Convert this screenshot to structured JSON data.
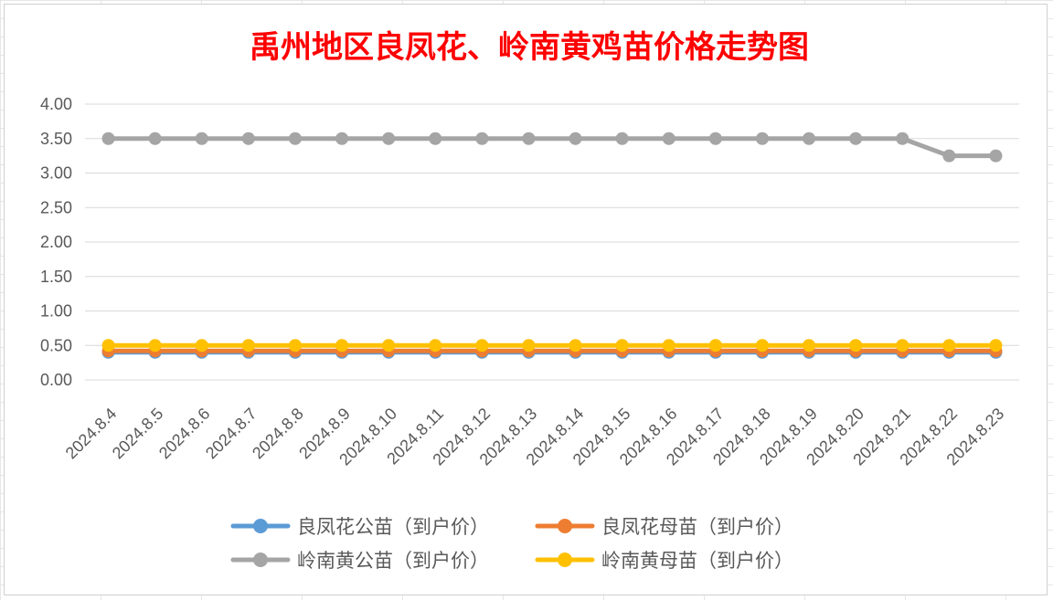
{
  "chart_data": {
    "type": "line",
    "title": "禹州地区良凤花、岭南黄鸡苗价格走势图",
    "xlabel": "",
    "ylabel": "",
    "ylim": [
      0,
      4
    ],
    "yticks": [
      "0.00",
      "0.50",
      "1.00",
      "1.50",
      "2.00",
      "2.50",
      "3.00",
      "3.50",
      "4.00"
    ],
    "grid": true,
    "legend_position": "bottom",
    "categories": [
      "2024.8.4",
      "2024.8.5",
      "2024.8.6",
      "2024.8.7",
      "2024.8.8",
      "2024.8.9",
      "2024.8.10",
      "2024.8.11",
      "2024.8.12",
      "2024.8.13",
      "2024.8.14",
      "2024.8.15",
      "2024.8.16",
      "2024.8.17",
      "2024.8.18",
      "2024.8.19",
      "2024.8.20",
      "2024.8.21",
      "2024.8.22",
      "2024.8.23"
    ],
    "series": [
      {
        "name": "良凤花公苗（到户价）",
        "color": "#5b9bd5",
        "values": [
          0.4,
          0.4,
          0.4,
          0.4,
          0.4,
          0.4,
          0.4,
          0.4,
          0.4,
          0.4,
          0.4,
          0.4,
          0.4,
          0.4,
          0.4,
          0.4,
          0.4,
          0.4,
          0.4,
          0.4
        ]
      },
      {
        "name": "良凤花母苗（到户价）",
        "color": "#ed7d31",
        "values": [
          0.42,
          0.42,
          0.42,
          0.42,
          0.42,
          0.42,
          0.42,
          0.42,
          0.42,
          0.42,
          0.42,
          0.42,
          0.42,
          0.42,
          0.42,
          0.42,
          0.42,
          0.42,
          0.42,
          0.42
        ]
      },
      {
        "name": "岭南黄公苗（到户价）",
        "color": "#a5a5a5",
        "values": [
          3.5,
          3.5,
          3.5,
          3.5,
          3.5,
          3.5,
          3.5,
          3.5,
          3.5,
          3.5,
          3.5,
          3.5,
          3.5,
          3.5,
          3.5,
          3.5,
          3.5,
          3.5,
          3.25,
          3.25
        ]
      },
      {
        "name": "岭南黄母苗（到户价）",
        "color": "#ffc000",
        "values": [
          0.5,
          0.5,
          0.5,
          0.5,
          0.5,
          0.5,
          0.5,
          0.5,
          0.5,
          0.5,
          0.5,
          0.5,
          0.5,
          0.5,
          0.5,
          0.5,
          0.5,
          0.5,
          0.5,
          0.5
        ]
      }
    ]
  }
}
